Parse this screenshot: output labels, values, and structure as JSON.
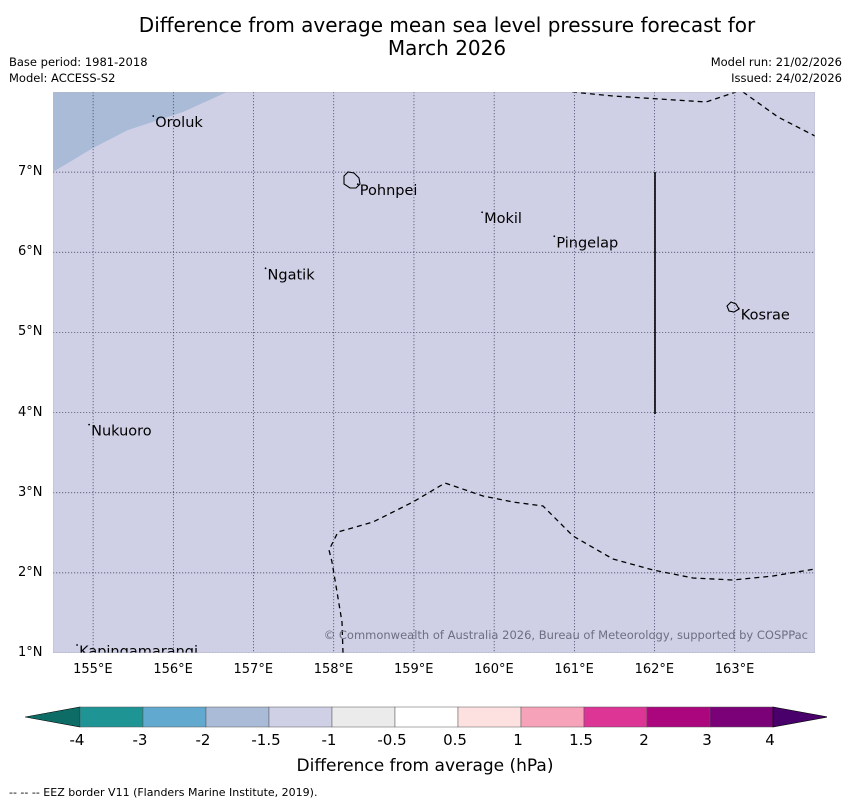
{
  "title": {
    "line1": "Difference from average mean sea level pressure forecast for",
    "line2": "March 2026"
  },
  "meta": {
    "base_period": "Base period: 1981-2018",
    "model": "Model: ACCESS-S2",
    "model_run": "Model run: 21/02/2026",
    "issued": "Issued: 24/02/2026"
  },
  "map": {
    "lon_labels": [
      "155°E",
      "156°E",
      "157°E",
      "158°E",
      "159°E",
      "160°E",
      "161°E",
      "162°E",
      "163°E"
    ],
    "lat_labels": [
      "7°N",
      "6°N",
      "5°N",
      "4°N",
      "3°N",
      "2°N",
      "1°N"
    ],
    "places": [
      {
        "name": "Oroluk",
        "lon": 155.75,
        "lat": 7.7
      },
      {
        "name": "Pohnpei",
        "lon": 158.3,
        "lat": 6.85
      },
      {
        "name": "Mokil",
        "lon": 159.85,
        "lat": 6.5
      },
      {
        "name": "Pingelap",
        "lon": 160.75,
        "lat": 6.2
      },
      {
        "name": "Ngatik",
        "lon": 157.15,
        "lat": 5.8
      },
      {
        "name": "Kosrae",
        "lon": 163.05,
        "lat": 5.3
      },
      {
        "name": "Nukuoro",
        "lon": 154.95,
        "lat": 3.85
      },
      {
        "name": "Kapingamarangi",
        "lon": 154.8,
        "lat": 1.1
      }
    ],
    "copyright": "© Commonwealth of Australia 2026, Bureau of Meteorology, supported by COSPPac",
    "colors": {
      "main_field": "#cfd0e6",
      "low_field": "#a9bbd7"
    }
  },
  "legend": {
    "label": "Difference from average (hPa)",
    "ticks": [
      "-4",
      "-3",
      "-2",
      "-1.5",
      "-1",
      "-0.5",
      "0.5",
      "1",
      "1.5",
      "2",
      "3",
      "4"
    ],
    "colors": [
      "#0d6d66",
      "#1e9494",
      "#62a9cf",
      "#a9bbd7",
      "#cfd0e6",
      "#ebebeb",
      "#ffffff",
      "#fde0e0",
      "#f6a2b8",
      "#dc3596",
      "#ac067e",
      "#7a0177",
      "#49006a"
    ]
  },
  "footer": "--  --  -- EEZ border V11 (Flanders Marine Institute, 2019)."
}
